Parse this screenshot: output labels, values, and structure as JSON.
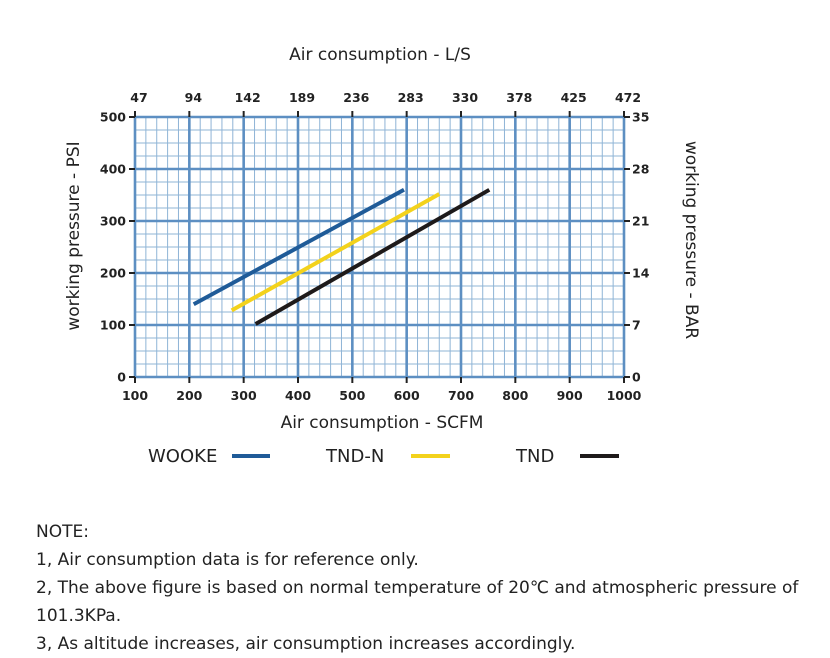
{
  "chart_data": {
    "type": "line",
    "title": "Air consumption - L/S",
    "xlabel": "Air consumption  - SCFM",
    "ylabel": "working pressure - PSI",
    "ylabel_right": "working pressure - BAR",
    "xlim": [
      100,
      1000
    ],
    "ylim": [
      0,
      500
    ],
    "x_ticks": [
      "100",
      "200",
      "300",
      "400",
      "500",
      "600",
      "700",
      "800",
      "900",
      "1000"
    ],
    "x_top_ticks": [
      "47",
      "94",
      "142",
      "189",
      "236",
      "283",
      "330",
      "378",
      "425",
      "472"
    ],
    "y_ticks": [
      "0",
      "100",
      "200",
      "300",
      "400",
      "500"
    ],
    "y_right_ticks": [
      "0",
      "7",
      "14",
      "21",
      "28",
      "35"
    ],
    "grid": true,
    "legend_position": "bottom",
    "series": [
      {
        "name": "WOOKE",
        "color": "#1f5b98",
        "points": [
          [
            208,
            140
          ],
          [
            595,
            360
          ]
        ]
      },
      {
        "name": "TND-N",
        "color": "#f3d21c",
        "points": [
          [
            278,
            128
          ],
          [
            660,
            352
          ]
        ]
      },
      {
        "name": "TND",
        "color": "#1e1a1a",
        "points": [
          [
            322,
            102
          ],
          [
            752,
            360
          ]
        ]
      }
    ]
  },
  "notes": {
    "heading": "NOTE:",
    "items": [
      "1, Air consumption data is for reference only.",
      "2, The above figure is based on normal temperature of 20℃ and atmospheric pressure of 101.3KPa.",
      "3, As altitude increases, air consumption increases accordingly."
    ]
  }
}
